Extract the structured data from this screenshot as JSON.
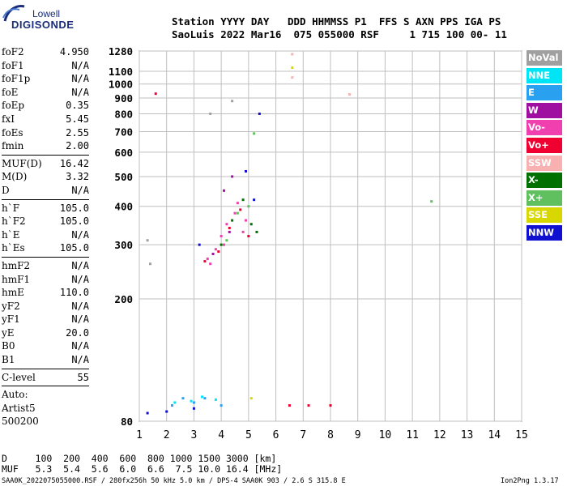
{
  "logo": {
    "top": "Lowell",
    "main": "DIGISONDE"
  },
  "header": {
    "line1": "Station YYYY DAY   DDD HHMMSS P1  FFS S AXN PPS IGA PS",
    "line2": "SaoLuis 2022 Mar16  075 055000 RSF     1 715 100 00- 11"
  },
  "sidebar": {
    "group1": [
      {
        "label": "foF2",
        "value": "4.950"
      },
      {
        "label": "foF1",
        "value": "N/A"
      },
      {
        "label": "foF1p",
        "value": "N/A"
      },
      {
        "label": "foE",
        "value": "N/A"
      },
      {
        "label": "foEp",
        "value": "0.35"
      },
      {
        "label": "fxI",
        "value": "5.45"
      },
      {
        "label": "foEs",
        "value": "2.55"
      },
      {
        "label": "fmin",
        "value": "2.00"
      }
    ],
    "group2": [
      {
        "label": "MUF(D)",
        "value": "16.42"
      },
      {
        "label": "M(D)",
        "value": "3.32"
      },
      {
        "label": "D",
        "value": "N/A"
      }
    ],
    "group3": [
      {
        "label": "h`F",
        "value": "105.0"
      },
      {
        "label": "h`F2",
        "value": "105.0"
      },
      {
        "label": "h`E",
        "value": "N/A"
      },
      {
        "label": "h`Es",
        "value": "105.0"
      }
    ],
    "group4": [
      {
        "label": "hmF2",
        "value": "N/A"
      },
      {
        "label": "hmF1",
        "value": "N/A"
      },
      {
        "label": "hmE",
        "value": "110.0"
      },
      {
        "label": "yF2",
        "value": "N/A"
      },
      {
        "label": "yF1",
        "value": "N/A"
      },
      {
        "label": "yE",
        "value": "20.0"
      },
      {
        "label": "B0",
        "value": "N/A"
      },
      {
        "label": "B1",
        "value": "N/A"
      }
    ],
    "clevel": {
      "label": "C-level",
      "value": "55"
    },
    "auto": [
      "Auto:",
      "Artist5",
      "500200"
    ]
  },
  "legend": [
    {
      "label": "NoVal",
      "color": "#a0a0a0"
    },
    {
      "label": "NNE",
      "color": "#00e5f5"
    },
    {
      "label": "E",
      "color": "#2aa0f0"
    },
    {
      "label": "W",
      "color": "#a010a0"
    },
    {
      "label": "Vo-",
      "color": "#f040b0"
    },
    {
      "label": "Vo+",
      "color": "#f00030"
    },
    {
      "label": "SSW",
      "color": "#f8b0b0"
    },
    {
      "label": "X-",
      "color": "#007000"
    },
    {
      "label": "X+",
      "color": "#60c060"
    },
    {
      "label": "SSE",
      "color": "#d8d800"
    },
    {
      "label": "NNW",
      "color": "#1010d0"
    }
  ],
  "chart_data": {
    "type": "scatter",
    "title": "",
    "xlabel": "",
    "ylabel": "",
    "xlim": [
      1,
      15
    ],
    "ylim": [
      80,
      1280
    ],
    "x_ticks": [
      "1",
      "2",
      "3",
      "4",
      "5",
      "6",
      "7",
      "8",
      "9",
      "10",
      "11",
      "12",
      "13",
      "14",
      "15"
    ],
    "y_ticks": [
      {
        "value": 80,
        "label": "80"
      },
      {
        "value": 200,
        "label": "200"
      },
      {
        "value": 300,
        "label": "300"
      },
      {
        "value": 400,
        "label": "400"
      },
      {
        "value": 500,
        "label": "500"
      },
      {
        "value": 600,
        "label": "600"
      },
      {
        "value": 700,
        "label": "700"
      },
      {
        "value": 800,
        "label": "800"
      },
      {
        "value": 900,
        "label": "900"
      },
      {
        "value": 1000,
        "label": "1000"
      },
      {
        "value": 1100,
        "label": "1100"
      },
      {
        "value": 1280,
        "label": "1280"
      }
    ],
    "y_scale": "log",
    "grid": true,
    "series": [
      {
        "name": "Vo-",
        "points": [
          [
            3.5,
            270
          ],
          [
            3.8,
            290
          ],
          [
            4.0,
            320
          ],
          [
            4.2,
            350
          ],
          [
            4.5,
            380
          ],
          [
            4.8,
            330
          ],
          [
            3.6,
            260
          ],
          [
            4.1,
            300
          ],
          [
            4.6,
            410
          ],
          [
            4.9,
            360
          ]
        ]
      },
      {
        "name": "Vo+",
        "points": [
          [
            3.4,
            265
          ],
          [
            3.9,
            285
          ],
          [
            4.3,
            340
          ],
          [
            4.7,
            390
          ],
          [
            5.0,
            320
          ],
          [
            1.6,
            930
          ],
          [
            7.2,
            90
          ],
          [
            8.0,
            90
          ],
          [
            6.5,
            90
          ]
        ]
      },
      {
        "name": "X-",
        "points": [
          [
            4.0,
            300
          ],
          [
            4.4,
            360
          ],
          [
            4.8,
            420
          ],
          [
            5.1,
            350
          ],
          [
            5.3,
            330
          ]
        ]
      },
      {
        "name": "X+",
        "points": [
          [
            4.2,
            310
          ],
          [
            4.6,
            380
          ],
          [
            5.0,
            400
          ],
          [
            11.7,
            415
          ],
          [
            5.2,
            690
          ]
        ]
      },
      {
        "name": "NNW",
        "points": [
          [
            5.4,
            800
          ],
          [
            4.9,
            520
          ],
          [
            5.2,
            420
          ],
          [
            3.2,
            300
          ],
          [
            1.3,
            85
          ],
          [
            2.0,
            86
          ],
          [
            3.0,
            88
          ]
        ]
      },
      {
        "name": "E",
        "points": [
          [
            2.2,
            90
          ],
          [
            2.6,
            95
          ],
          [
            3.0,
            92
          ],
          [
            3.4,
            95
          ],
          [
            4.0,
            90
          ]
        ]
      },
      {
        "name": "NNE",
        "points": [
          [
            2.3,
            92
          ],
          [
            2.9,
            93
          ],
          [
            3.3,
            96
          ],
          [
            3.8,
            94
          ]
        ]
      },
      {
        "name": "W",
        "points": [
          [
            4.1,
            450
          ],
          [
            4.4,
            500
          ],
          [
            3.7,
            280
          ],
          [
            4.3,
            330
          ]
        ]
      },
      {
        "name": "SSW",
        "points": [
          [
            6.6,
            1250
          ],
          [
            8.7,
            925
          ],
          [
            6.6,
            1050
          ]
        ]
      },
      {
        "name": "SSE",
        "points": [
          [
            6.6,
            1130
          ],
          [
            5.1,
            95
          ]
        ]
      },
      {
        "name": "NoVal",
        "points": [
          [
            1.3,
            310
          ],
          [
            1.4,
            260
          ],
          [
            3.6,
            800
          ],
          [
            4.4,
            880
          ]
        ]
      }
    ]
  },
  "bottom": {
    "line1": "D     100  200  400  600  800 1000 1500 3000 [km]",
    "line2": "MUF   5.3  5.4  5.6  6.0  6.6  7.5 10.0 16.4 [MHz]"
  },
  "footer": {
    "left": "SAA0K_2022075055000.RSF / 280fx256h 50 kHz 5.0 km / DPS-4 SAA0K 903 / 2.6 S 315.8 E",
    "right": "Ion2Png 1.3.17"
  }
}
